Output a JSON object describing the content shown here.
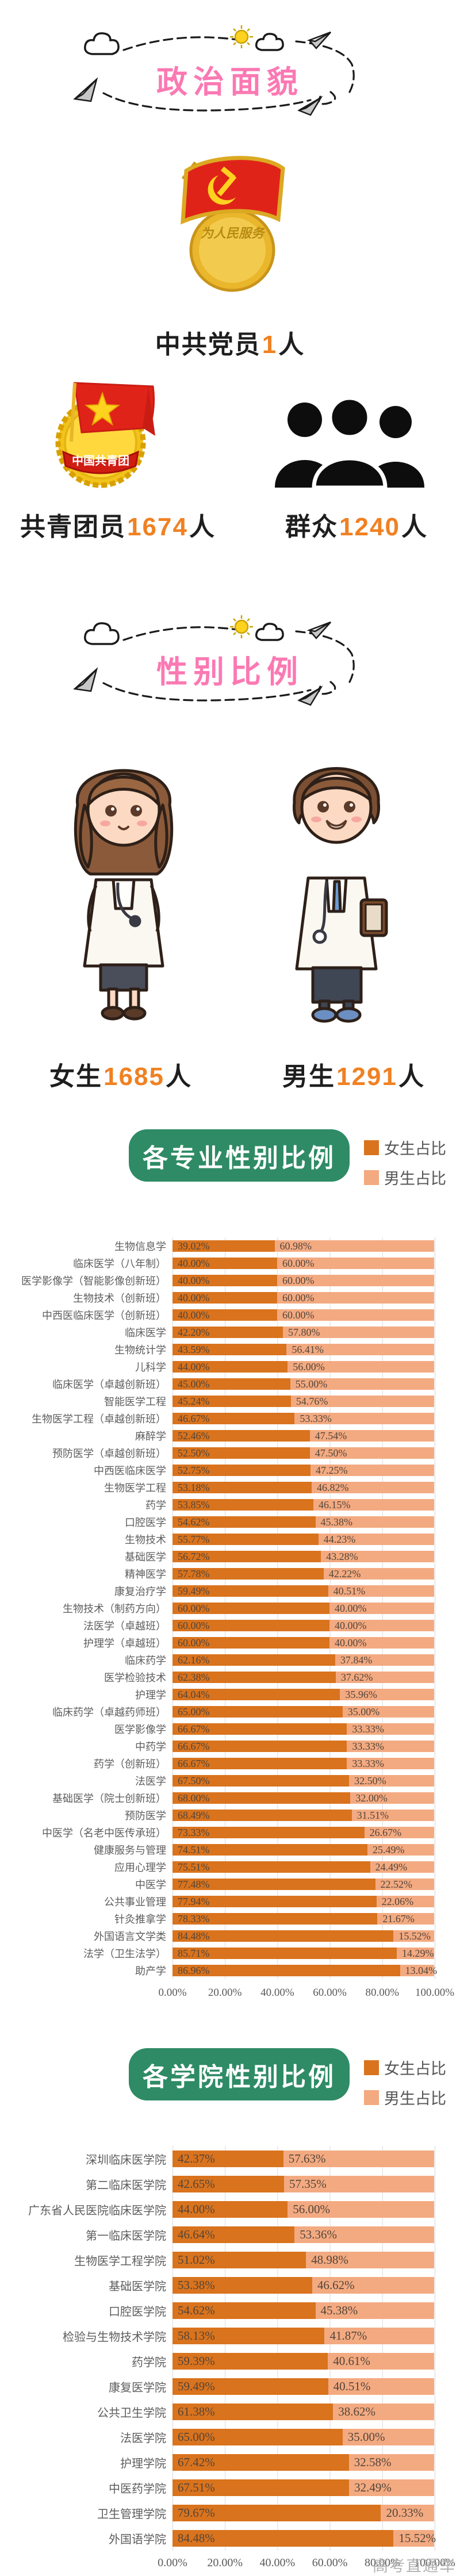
{
  "political": {
    "title": "政治面貌",
    "items": [
      {
        "prefix": "中共党员",
        "value": "1",
        "suffix": "人",
        "icon": "party-badge"
      },
      {
        "prefix": "共青团员",
        "value": "1674",
        "suffix": "人",
        "icon": "league-badge"
      },
      {
        "prefix": "群众",
        "value": "1240",
        "suffix": "人",
        "icon": "crowd"
      }
    ],
    "party_badge_text": "为人民服务",
    "league_badge_text": "中国共青团"
  },
  "gender": {
    "title": "性别比例",
    "items": [
      {
        "prefix": "女生",
        "value": "1685",
        "suffix": "人",
        "icon": "female-doctor"
      },
      {
        "prefix": "男生",
        "value": "1291",
        "suffix": "人",
        "icon": "male-doctor"
      }
    ]
  },
  "colors": {
    "female_bar": "#d9731d",
    "male_bar": "#f3aa81",
    "section_green": "#2e8b65",
    "title_pink": "#fb79b3",
    "number_orange": "#f08122"
  },
  "watermark": "高考直通车",
  "chart_data": [
    {
      "type": "bar",
      "stacked": true,
      "orientation": "horizontal",
      "title": "各专业性别比例",
      "legend_position": "right-of-title",
      "xlim": [
        0,
        100
      ],
      "x_ticks": [
        "0.00%",
        "20.00%",
        "40.00%",
        "60.00%",
        "80.00%",
        "100.00%"
      ],
      "categories": [
        "生物信息学",
        "临床医学（八年制）",
        "医学影像学（智能影像创新班）",
        "生物技术（创新班）",
        "中西医临床医学（创新班）",
        "临床医学",
        "生物统计学",
        "儿科学",
        "临床医学（卓越创新班）",
        "智能医学工程",
        "生物医学工程（卓越创新班）",
        "麻醉学",
        "预防医学（卓越创新班）",
        "中西医临床医学",
        "生物医学工程",
        "药学",
        "口腔医学",
        "生物技术",
        "基础医学",
        "精神医学",
        "康复治疗学",
        "生物技术（制药方向）",
        "法医学（卓越班）",
        "护理学（卓越班）",
        "临床药学",
        "医学检验技术",
        "护理学",
        "临床药学（卓越药师班）",
        "医学影像学",
        "中药学",
        "药学（创新班）",
        "法医学",
        "基础医学（院士创新班）",
        "预防医学",
        "中医学（名老中医传承班）",
        "健康服务与管理",
        "应用心理学",
        "中医学",
        "公共事业管理",
        "针灸推拿学",
        "外国语言文学类",
        "法学（卫生法学）",
        "助产学"
      ],
      "series": [
        {
          "name": "女生占比",
          "values": [
            39.02,
            40.0,
            40.0,
            40.0,
            40.0,
            42.2,
            43.59,
            44.0,
            45.0,
            45.24,
            46.67,
            52.46,
            52.5,
            52.75,
            53.18,
            53.85,
            54.62,
            55.77,
            56.72,
            57.78,
            59.49,
            60.0,
            60.0,
            60.0,
            62.16,
            62.38,
            64.04,
            65.0,
            66.67,
            66.67,
            66.67,
            67.5,
            68.0,
            68.49,
            73.33,
            74.51,
            75.51,
            77.48,
            77.94,
            78.33,
            84.48,
            85.71,
            86.96
          ]
        },
        {
          "name": "男生占比",
          "values": [
            60.98,
            60.0,
            60.0,
            60.0,
            60.0,
            57.8,
            56.41,
            56.0,
            55.0,
            54.76,
            53.33,
            47.54,
            47.5,
            47.25,
            46.82,
            46.15,
            45.38,
            44.23,
            43.28,
            42.22,
            40.51,
            40.0,
            40.0,
            40.0,
            37.84,
            37.62,
            35.96,
            35.0,
            33.33,
            33.33,
            33.33,
            32.5,
            32.0,
            31.51,
            26.67,
            25.49,
            24.49,
            22.52,
            22.06,
            21.67,
            15.52,
            14.29,
            13.04
          ]
        }
      ]
    },
    {
      "type": "bar",
      "stacked": true,
      "orientation": "horizontal",
      "title": "各学院性别比例",
      "legend_position": "right-of-title",
      "xlim": [
        0,
        100
      ],
      "x_ticks": [
        "0.00%",
        "20.00%",
        "40.00%",
        "60.00%",
        "80.00%",
        "100.00%"
      ],
      "categories": [
        "深圳临床医学院",
        "第二临床医学院",
        "广东省人民医院临床医学院",
        "第一临床医学院",
        "生物医学工程学院",
        "基础医学院",
        "口腔医学院",
        "检验与生物技术学院",
        "药学院",
        "康复医学院",
        "公共卫生学院",
        "法医学院",
        "护理学院",
        "中医药学院",
        "卫生管理学院",
        "外国语学院"
      ],
      "series": [
        {
          "name": "女生占比",
          "values": [
            42.37,
            42.65,
            44.0,
            46.64,
            51.02,
            53.38,
            54.62,
            58.13,
            59.39,
            59.49,
            61.38,
            65.0,
            67.42,
            67.51,
            79.67,
            84.48
          ]
        },
        {
          "name": "男生占比",
          "values": [
            57.63,
            57.35,
            56.0,
            53.36,
            48.98,
            46.62,
            45.38,
            41.87,
            40.61,
            40.51,
            38.62,
            35.0,
            32.58,
            32.49,
            20.33,
            15.52
          ]
        }
      ]
    }
  ]
}
